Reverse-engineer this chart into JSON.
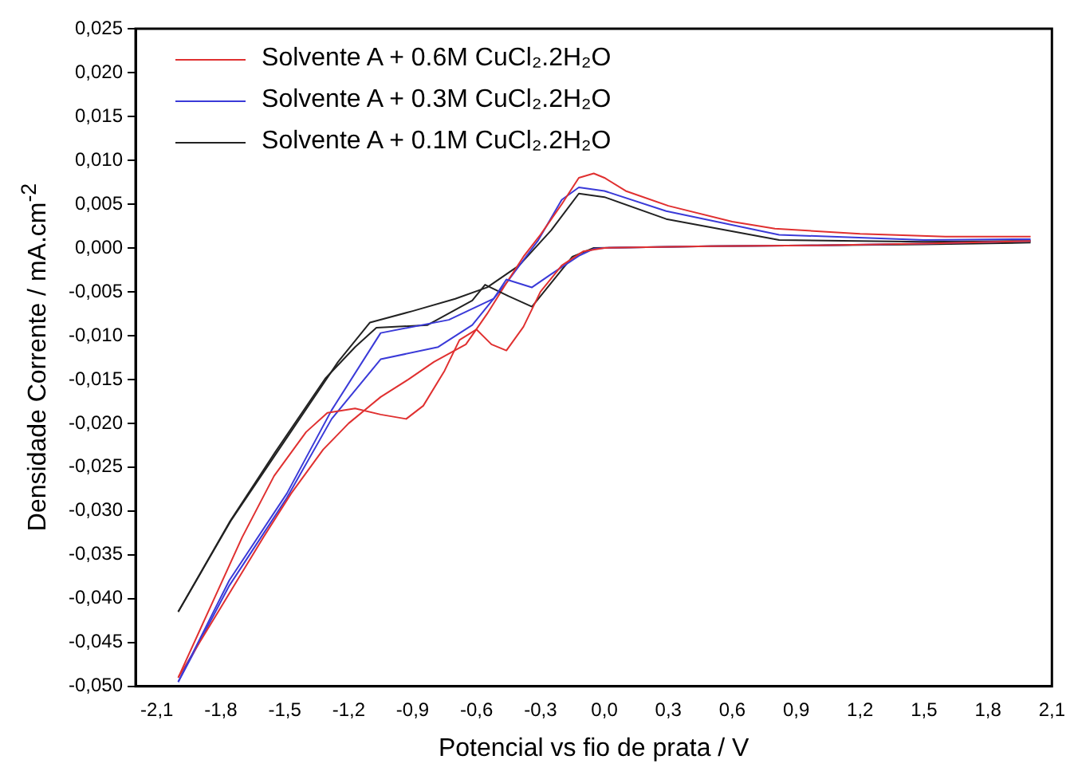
{
  "chart_data": {
    "type": "line",
    "xlabel": "Potencial vs fio de prata / V",
    "ylabel": "Densidade Corrente / mA.cm$^{-2}$",
    "xlim": [
      -2.2,
      2.1
    ],
    "ylim": [
      -0.05,
      0.025
    ],
    "xticks": [
      {
        "value": -2.1,
        "label": "-2,1"
      },
      {
        "value": -1.8,
        "label": "-1,8"
      },
      {
        "value": -1.5,
        "label": "-1,5"
      },
      {
        "value": -1.2,
        "label": "-1,2"
      },
      {
        "value": -0.9,
        "label": "-0,9"
      },
      {
        "value": -0.6,
        "label": "-0,6"
      },
      {
        "value": -0.3,
        "label": "-0,3"
      },
      {
        "value": 0,
        "label": "0,0"
      },
      {
        "value": 0.3,
        "label": "0,3"
      },
      {
        "value": 0.6,
        "label": "0,6"
      },
      {
        "value": 0.9,
        "label": "0,9"
      },
      {
        "value": 1.2,
        "label": "1,2"
      },
      {
        "value": 1.5,
        "label": "1,5"
      },
      {
        "value": 1.8,
        "label": "1,8"
      },
      {
        "value": 2.1,
        "label": "2,1"
      }
    ],
    "yticks": [
      {
        "value": 0.025,
        "label": "0,025"
      },
      {
        "value": 0.02,
        "label": "0,020"
      },
      {
        "value": 0.015,
        "label": "0,015"
      },
      {
        "value": 0.01,
        "label": "0,010"
      },
      {
        "value": 0.005,
        "label": "0,005"
      },
      {
        "value": 0,
        "label": "0,000"
      },
      {
        "value": -0.005,
        "label": "-0,005"
      },
      {
        "value": -0.01,
        "label": "-0,010"
      },
      {
        "value": -0.015,
        "label": "-0,015"
      },
      {
        "value": -0.02,
        "label": "-0,020"
      },
      {
        "value": -0.025,
        "label": "-0,025"
      },
      {
        "value": -0.03,
        "label": "-0,030"
      },
      {
        "value": -0.035,
        "label": "-0,035"
      },
      {
        "value": -0.04,
        "label": "-0,040"
      },
      {
        "value": -0.045,
        "label": "-0,045"
      },
      {
        "value": -0.05,
        "label": "-0,050"
      }
    ],
    "grid": false,
    "legend": "top left",
    "marker": "none",
    "line_style": "solid",
    "series": [
      {
        "name": "Solvente A + 0.6M CuCl₂.2H₂O",
        "color": "#e03030",
        "x": [
          -2.0,
          -1.85,
          -1.7,
          -1.55,
          -1.4,
          -1.3,
          -1.17,
          -1.05,
          -0.93,
          -0.85,
          -0.75,
          -0.68,
          -0.6,
          -0.53,
          -0.46,
          -0.38,
          -0.3,
          -0.2,
          -0.1,
          0.0,
          0.5,
          1.0,
          1.5,
          2.0
        ],
        "values": [
          -0.049,
          -0.041,
          -0.033,
          -0.026,
          -0.021,
          -0.0188,
          -0.0183,
          -0.019,
          -0.0195,
          -0.018,
          -0.014,
          -0.0105,
          -0.0093,
          -0.011,
          -0.0117,
          -0.009,
          -0.005,
          -0.002,
          -0.0004,
          0.0,
          0.0002,
          0.0003,
          0.0005,
          0.0008
        ]
      },
      {
        "name": "Solvente A + 0.3M CuCl₂.2H₂O",
        "color": "#3a3ad8",
        "x": [
          -2.0,
          -1.76,
          -1.49,
          -1.28,
          -1.05,
          -0.73,
          -0.52,
          -0.46,
          -0.34,
          -0.25,
          -0.12,
          -0.05,
          0.0,
          0.5,
          1.0,
          1.5,
          2.0
        ],
        "values": [
          -0.0495,
          -0.0379,
          -0.028,
          -0.0185,
          -0.0097,
          -0.0082,
          -0.0058,
          -0.0036,
          -0.0045,
          -0.003,
          -0.0009,
          -0.0001,
          0.0,
          0.0002,
          0.0003,
          0.0005,
          0.0008
        ]
      },
      {
        "name": "Solvente A + 0.1M CuCl₂.2H₂O",
        "color": "#222222",
        "x": [
          -2.0,
          -1.76,
          -1.545,
          -1.31,
          -1.17,
          -1.07,
          -0.83,
          -0.62,
          -0.56,
          -0.45,
          -0.34,
          -0.25,
          -0.15,
          -0.05,
          0.5,
          1.0,
          1.5,
          2.0
        ],
        "values": [
          -0.0415,
          -0.0313,
          -0.0233,
          -0.0149,
          -0.0113,
          -0.0091,
          -0.0088,
          -0.006,
          -0.0042,
          -0.0055,
          -0.0067,
          -0.004,
          -0.001,
          0.0,
          0.0002,
          0.0003,
          0.0004,
          0.0006
        ]
      },
      {
        "color": "#e03030",
        "x": [
          -2.0,
          -1.9,
          -1.75,
          -1.6,
          -1.47,
          -1.32,
          -1.2,
          -1.05,
          -0.92,
          -0.8,
          -0.65,
          -0.55,
          -0.46,
          -0.38,
          -0.3,
          -0.2,
          -0.12,
          -0.05,
          0.0,
          0.1,
          0.3,
          0.6,
          0.8,
          1.2,
          1.6,
          2.0
        ],
        "values": [
          -0.049,
          -0.045,
          -0.039,
          -0.033,
          -0.028,
          -0.023,
          -0.02,
          -0.017,
          -0.015,
          -0.013,
          -0.011,
          -0.0075,
          -0.004,
          -0.001,
          0.0015,
          0.005,
          0.008,
          0.0085,
          0.008,
          0.0065,
          0.0048,
          0.003,
          0.0022,
          0.0016,
          0.0013,
          0.0013
        ]
      },
      {
        "color": "#3a3ad8",
        "x": [
          -2.0,
          -1.76,
          -1.49,
          -1.28,
          -1.05,
          -0.78,
          -0.62,
          -0.46,
          -0.31,
          -0.2,
          -0.12,
          0.0,
          0.29,
          0.82,
          1.5,
          2.0
        ],
        "values": [
          -0.0495,
          -0.0385,
          -0.0285,
          -0.0195,
          -0.0127,
          -0.0113,
          -0.0088,
          -0.004,
          0.0009,
          0.0055,
          0.0069,
          0.0065,
          0.0042,
          0.0015,
          0.0009,
          0.001
        ]
      },
      {
        "color": "#222222",
        "x": [
          -2.0,
          -1.75,
          -1.5,
          -1.25,
          -1.1,
          -0.9,
          -0.7,
          -0.55,
          -0.4,
          -0.25,
          -0.12,
          0.0,
          0.29,
          0.82,
          1.5,
          2.0
        ],
        "values": [
          -0.0415,
          -0.031,
          -0.022,
          -0.013,
          -0.0085,
          -0.0072,
          -0.0058,
          -0.0045,
          -0.002,
          0.002,
          0.0062,
          0.0058,
          0.0033,
          0.0009,
          0.0007,
          0.0008
        ]
      }
    ]
  }
}
